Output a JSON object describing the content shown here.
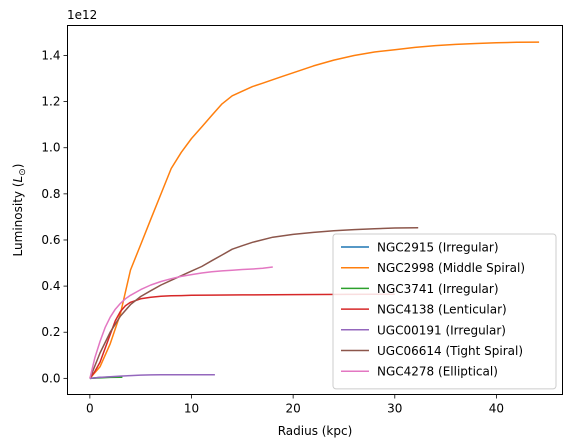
{
  "chart_data": {
    "type": "line",
    "xlabel": "Radius (kpc)",
    "ylabel_prefix": "Luminosity (",
    "ylabel_symbol": "L",
    "ylabel_sub": "⊙",
    "ylabel_suffix": ")",
    "y_offset_label": "1e12",
    "xlim": [
      -2.2,
      46.5
    ],
    "ylim": [
      -0.07,
      1.53
    ],
    "x_ticks": [
      0,
      10,
      20,
      30,
      40
    ],
    "x_tick_labels": [
      "0",
      "10",
      "20",
      "30",
      "40"
    ],
    "y_ticks": [
      0.0,
      0.2,
      0.4,
      0.6,
      0.8,
      1.0,
      1.2,
      1.4
    ],
    "y_tick_labels": [
      "0.0",
      "0.2",
      "0.4",
      "0.6",
      "0.8",
      "1.0",
      "1.2",
      "1.4"
    ],
    "y_unit_multiplier": 1000000000000.0,
    "grid": false,
    "legend_position": "lower-right",
    "series": [
      {
        "name": "NGC2915 (Irregular)",
        "color": "#1f77b4",
        "x": [
          0,
          0.5,
          1,
          1.5,
          2
        ],
        "y": [
          0,
          0.002,
          0.004,
          0.005,
          0.006
        ]
      },
      {
        "name": "NGC2998 (Middle Spiral)",
        "color": "#ff7f0e",
        "x": [
          0,
          1,
          2,
          3,
          4,
          5,
          6,
          7,
          8,
          9,
          10,
          11,
          12,
          13,
          14,
          15,
          16,
          17,
          18,
          19,
          20,
          22,
          24,
          26,
          28,
          30,
          32,
          34,
          36,
          38,
          40,
          42,
          44.2
        ],
        "y": [
          0,
          0.05,
          0.15,
          0.28,
          0.47,
          0.58,
          0.69,
          0.8,
          0.91,
          0.98,
          1.04,
          1.09,
          1.14,
          1.19,
          1.225,
          1.245,
          1.265,
          1.28,
          1.295,
          1.31,
          1.325,
          1.355,
          1.38,
          1.4,
          1.415,
          1.425,
          1.435,
          1.443,
          1.448,
          1.452,
          1.455,
          1.457,
          1.458
        ]
      },
      {
        "name": "NGC3741 (Irregular)",
        "color": "#2ca02c",
        "x": [
          0,
          1,
          2,
          3,
          3.2
        ],
        "y": [
          0,
          0.002,
          0.004,
          0.005,
          0.005
        ]
      },
      {
        "name": "NGC4138 (Lenticular)",
        "color": "#d62728",
        "x": [
          0,
          0.5,
          1,
          1.5,
          2,
          2.5,
          3,
          3.5,
          4,
          5,
          6,
          7,
          8,
          9,
          10,
          12,
          15,
          20,
          25,
          28,
          30
        ],
        "y": [
          0,
          0.03,
          0.07,
          0.13,
          0.19,
          0.25,
          0.29,
          0.315,
          0.33,
          0.345,
          0.352,
          0.356,
          0.358,
          0.359,
          0.36,
          0.361,
          0.362,
          0.363,
          0.364,
          0.365,
          0.365
        ]
      },
      {
        "name": "UGC00191 (Irregular)",
        "color": "#9467bd",
        "x": [
          0,
          1,
          2,
          3,
          4,
          5,
          6,
          7,
          8,
          9,
          10,
          11,
          12.3
        ],
        "y": [
          0,
          0.004,
          0.007,
          0.01,
          0.012,
          0.014,
          0.015,
          0.016,
          0.016,
          0.016,
          0.016,
          0.016,
          0.016
        ]
      },
      {
        "name": "UGC06614 (Tight Spiral)",
        "color": "#8c564b",
        "x": [
          0,
          1,
          2,
          3,
          4,
          5,
          6,
          7,
          8,
          9,
          10,
          11,
          12,
          13,
          14,
          15,
          16,
          18,
          20,
          22,
          24,
          26,
          28,
          30,
          32.3
        ],
        "y": [
          0,
          0.11,
          0.2,
          0.27,
          0.32,
          0.355,
          0.38,
          0.405,
          0.425,
          0.445,
          0.465,
          0.485,
          0.51,
          0.535,
          0.56,
          0.575,
          0.59,
          0.612,
          0.624,
          0.633,
          0.64,
          0.645,
          0.649,
          0.652,
          0.653
        ]
      },
      {
        "name": "NGC4278 (Elliptical)",
        "color": "#e377c2",
        "x": [
          0,
          0.5,
          1,
          1.5,
          2,
          2.5,
          3,
          3.5,
          4,
          5,
          6,
          7,
          8,
          9,
          10,
          11,
          12,
          13,
          14,
          15,
          16,
          17,
          18
        ],
        "y": [
          0,
          0.09,
          0.16,
          0.22,
          0.265,
          0.3,
          0.325,
          0.345,
          0.36,
          0.385,
          0.405,
          0.42,
          0.432,
          0.442,
          0.45,
          0.457,
          0.462,
          0.466,
          0.469,
          0.472,
          0.474,
          0.477,
          0.483
        ]
      }
    ]
  }
}
